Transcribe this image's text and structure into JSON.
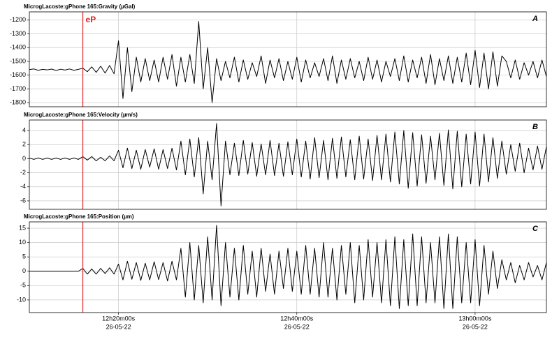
{
  "chart_data": [
    {
      "type": "line",
      "title": "MicrogLacoste:gPhone 165:Gravity (µGal)",
      "panel_label": "A",
      "marker": {
        "label": "eP",
        "x": 736,
        "color": "#e02020"
      },
      "x": [
        730,
        730.5,
        731,
        731.5,
        732,
        732.5,
        733,
        733.5,
        734,
        734.5,
        735,
        735.5,
        736,
        736.5,
        737,
        737.5,
        738,
        738.5,
        739,
        739.5,
        740,
        740.5,
        741,
        741.5,
        742,
        742.5,
        743,
        743.5,
        744,
        744.5,
        745,
        745.5,
        746,
        746.5,
        747,
        747.5,
        748,
        748.5,
        749,
        749.5,
        750,
        750.5,
        751,
        751.5,
        752,
        752.5,
        753,
        753.5,
        754,
        754.5,
        755,
        755.5,
        756,
        756.5,
        757,
        757.5,
        758,
        758.5,
        759,
        759.5,
        760,
        760.5,
        761,
        761.5,
        762,
        762.5,
        763,
        763.5,
        764,
        764.5,
        765,
        765.5,
        766,
        766.5,
        767,
        767.5,
        768,
        768.5,
        769,
        769.5,
        770,
        770.5,
        771,
        771.5,
        772,
        772.5,
        773,
        773.5,
        774,
        774.5,
        775,
        775.5,
        776,
        776.5,
        777,
        777.5,
        778,
        778.5,
        779,
        779.5,
        780,
        780.5,
        781,
        781.5,
        782,
        782.5,
        783,
        783.5,
        784,
        784.5,
        785,
        785.5,
        786,
        786.5,
        787,
        787.5,
        788
      ],
      "series": [
        {
          "color": "#000000",
          "values": [
            -1560,
            -1555,
            -1565,
            -1558,
            -1562,
            -1556,
            -1566,
            -1557,
            -1563,
            -1555,
            -1565,
            -1558,
            -1550,
            -1575,
            -1540,
            -1580,
            -1535,
            -1585,
            -1530,
            -1590,
            -1350,
            -1770,
            -1400,
            -1720,
            -1470,
            -1650,
            -1480,
            -1640,
            -1490,
            -1650,
            -1470,
            -1630,
            -1450,
            -1680,
            -1470,
            -1650,
            -1450,
            -1660,
            -1210,
            -1700,
            -1400,
            -1800,
            -1480,
            -1640,
            -1500,
            -1620,
            -1470,
            -1650,
            -1490,
            -1630,
            -1510,
            -1610,
            -1460,
            -1660,
            -1490,
            -1620,
            -1480,
            -1640,
            -1500,
            -1630,
            -1470,
            -1650,
            -1490,
            -1620,
            -1510,
            -1610,
            -1480,
            -1640,
            -1460,
            -1660,
            -1490,
            -1630,
            -1480,
            -1620,
            -1500,
            -1640,
            -1470,
            -1630,
            -1490,
            -1650,
            -1500,
            -1610,
            -1480,
            -1640,
            -1460,
            -1650,
            -1490,
            -1620,
            -1470,
            -1660,
            -1450,
            -1670,
            -1480,
            -1640,
            -1460,
            -1660,
            -1470,
            -1650,
            -1440,
            -1670,
            -1420,
            -1690,
            -1440,
            -1700,
            -1430,
            -1680,
            -1460,
            -1500,
            -1620,
            -1490,
            -1630,
            -1510,
            -1600,
            -1500,
            -1620,
            -1490,
            -1610
          ]
        }
      ],
      "xlim": [
        730,
        788
      ],
      "ylim": [
        -1830,
        -1140
      ],
      "yticks": [
        -1800,
        -1700,
        -1600,
        -1500,
        -1400,
        -1300,
        -1200
      ]
    },
    {
      "type": "line",
      "title": "MicrogLacoste:gPhone 165:Velocity (µm/s)",
      "panel_label": "B",
      "x": [
        730,
        730.5,
        731,
        731.5,
        732,
        732.5,
        733,
        733.5,
        734,
        734.5,
        735,
        735.5,
        736,
        736.5,
        737,
        737.5,
        738,
        738.5,
        739,
        739.5,
        740,
        740.5,
        741,
        741.5,
        742,
        742.5,
        743,
        743.5,
        744,
        744.5,
        745,
        745.5,
        746,
        746.5,
        747,
        747.5,
        748,
        748.5,
        749,
        749.5,
        750,
        750.5,
        751,
        751.5,
        752,
        752.5,
        753,
        753.5,
        754,
        754.5,
        755,
        755.5,
        756,
        756.5,
        757,
        757.5,
        758,
        758.5,
        759,
        759.5,
        760,
        760.5,
        761,
        761.5,
        762,
        762.5,
        763,
        763.5,
        764,
        764.5,
        765,
        765.5,
        766,
        766.5,
        767,
        767.5,
        768,
        768.5,
        769,
        769.5,
        770,
        770.5,
        771,
        771.5,
        772,
        772.5,
        773,
        773.5,
        774,
        774.5,
        775,
        775.5,
        776,
        776.5,
        777,
        777.5,
        778,
        778.5,
        779,
        779.5,
        780,
        780.5,
        781,
        781.5,
        782,
        782.5,
        783,
        783.5,
        784,
        784.5,
        785,
        785.5,
        786,
        786.5,
        787,
        787.5,
        788
      ],
      "series": [
        {
          "color": "#000000",
          "values": [
            0.1,
            -0.1,
            0.1,
            -0.1,
            0.1,
            -0.1,
            0.1,
            -0.1,
            0.1,
            -0.1,
            0.1,
            -0.1,
            0.3,
            -0.2,
            0.3,
            -0.3,
            0.2,
            -0.3,
            0.4,
            -0.3,
            1.2,
            -1.3,
            1.5,
            -1.4,
            1.2,
            -1.5,
            1.3,
            -1.2,
            1.4,
            -1.5,
            1.3,
            -1.4,
            1.5,
            -1.6,
            2.5,
            -2.3,
            2.8,
            -2.6,
            3,
            -5,
            2.5,
            -3,
            5,
            -6.7,
            2.5,
            -2.3,
            2.2,
            -2.4,
            2.6,
            -2.2,
            2.3,
            -2.5,
            2.1,
            -2.3,
            2.6,
            -2.4,
            2.2,
            -2.5,
            2.4,
            -2.3,
            2.8,
            -2.6,
            2.5,
            -2.9,
            3.0,
            -2.7,
            2.6,
            -3.0,
            2.9,
            -2.8,
            3.1,
            -2.6,
            2.7,
            -3.0,
            3.2,
            -2.9,
            2.8,
            -3.1,
            3.3,
            -3.0,
            3.5,
            -3.3,
            3.8,
            -3.6,
            4,
            -4.2,
            3.7,
            -3.9,
            3.4,
            -3.5,
            3.2,
            -3.0,
            3.6,
            -3.8,
            4.1,
            -4.3,
            3.9,
            -4.0,
            3.5,
            -3.6,
            3.8,
            -3.9,
            3.5,
            -3.3,
            3.0,
            -2.8,
            2.5,
            -2.2,
            2.0,
            -1.8,
            2.2,
            -2.0,
            1.5,
            -1.6,
            1.8,
            -1.5,
            1.7
          ]
        }
      ],
      "xlim": [
        730,
        788
      ],
      "ylim": [
        -7.2,
        5.5
      ],
      "yticks": [
        -6,
        -4,
        -2,
        0,
        2,
        4
      ]
    },
    {
      "type": "line",
      "title": "MicrogLacoste:gPhone 165:Position (µm)",
      "panel_label": "C",
      "x": [
        730,
        730.5,
        731,
        731.5,
        732,
        732.5,
        733,
        733.5,
        734,
        734.5,
        735,
        735.5,
        736,
        736.5,
        737,
        737.5,
        738,
        738.5,
        739,
        739.5,
        740,
        740.5,
        741,
        741.5,
        742,
        742.5,
        743,
        743.5,
        744,
        744.5,
        745,
        745.5,
        746,
        746.5,
        747,
        747.5,
        748,
        748.5,
        749,
        749.5,
        750,
        750.5,
        751,
        751.5,
        752,
        752.5,
        753,
        753.5,
        754,
        754.5,
        755,
        755.5,
        756,
        756.5,
        757,
        757.5,
        758,
        758.5,
        759,
        759.5,
        760,
        760.5,
        761,
        761.5,
        762,
        762.5,
        763,
        763.5,
        764,
        764.5,
        765,
        765.5,
        766,
        766.5,
        767,
        767.5,
        768,
        768.5,
        769,
        769.5,
        770,
        770.5,
        771,
        771.5,
        772,
        772.5,
        773,
        773.5,
        774,
        774.5,
        775,
        775.5,
        776,
        776.5,
        777,
        777.5,
        778,
        778.5,
        779,
        779.5,
        780,
        780.5,
        781,
        781.5,
        782,
        782.5,
        783,
        783.5,
        784,
        784.5,
        785,
        785.5,
        786,
        786.5,
        787,
        787.5,
        788
      ],
      "series": [
        {
          "color": "#000000",
          "values": [
            0,
            0,
            0,
            0,
            0,
            0,
            0,
            0,
            0,
            0,
            0,
            0,
            1,
            -1,
            0.8,
            -1,
            1,
            -0.8,
            1.2,
            -1,
            2.5,
            -3,
            3.5,
            -2.8,
            3,
            -3.2,
            2.8,
            -3,
            3.3,
            -2.9,
            3,
            -3.4,
            3.5,
            -3,
            8,
            -9,
            10,
            -10,
            9,
            -11,
            12,
            -10,
            16,
            -12,
            10,
            -9,
            8,
            -10,
            9,
            -8,
            7,
            -9,
            8,
            -7,
            6,
            -8,
            7,
            -6,
            8,
            -7,
            7,
            -8,
            9,
            -8,
            8,
            -9,
            10,
            -9,
            8,
            -10,
            9,
            -8,
            10,
            -11,
            9,
            -10,
            11,
            -9,
            10,
            -11,
            11,
            -12,
            12,
            -13,
            11,
            -12,
            13,
            -12,
            12,
            -11,
            10,
            -11,
            12,
            -13,
            13,
            -13,
            12,
            -11,
            10,
            -11,
            11,
            -12,
            9,
            -8,
            7,
            -6,
            4,
            -3,
            3,
            -4,
            2,
            -3,
            3,
            -2,
            2,
            -3,
            3
          ]
        }
      ],
      "xlim": [
        730,
        788
      ],
      "ylim": [
        -14.4,
        17.2
      ],
      "yticks": [
        -10,
        -5,
        0,
        5,
        10,
        15
      ],
      "xticks": [
        {
          "value": 740,
          "label": "12h20m00s"
        },
        {
          "value": 760,
          "label": "12h40m00s"
        },
        {
          "value": 780,
          "label": "13h00m00s"
        }
      ],
      "xtick_sublabel": "26-05-22"
    }
  ]
}
